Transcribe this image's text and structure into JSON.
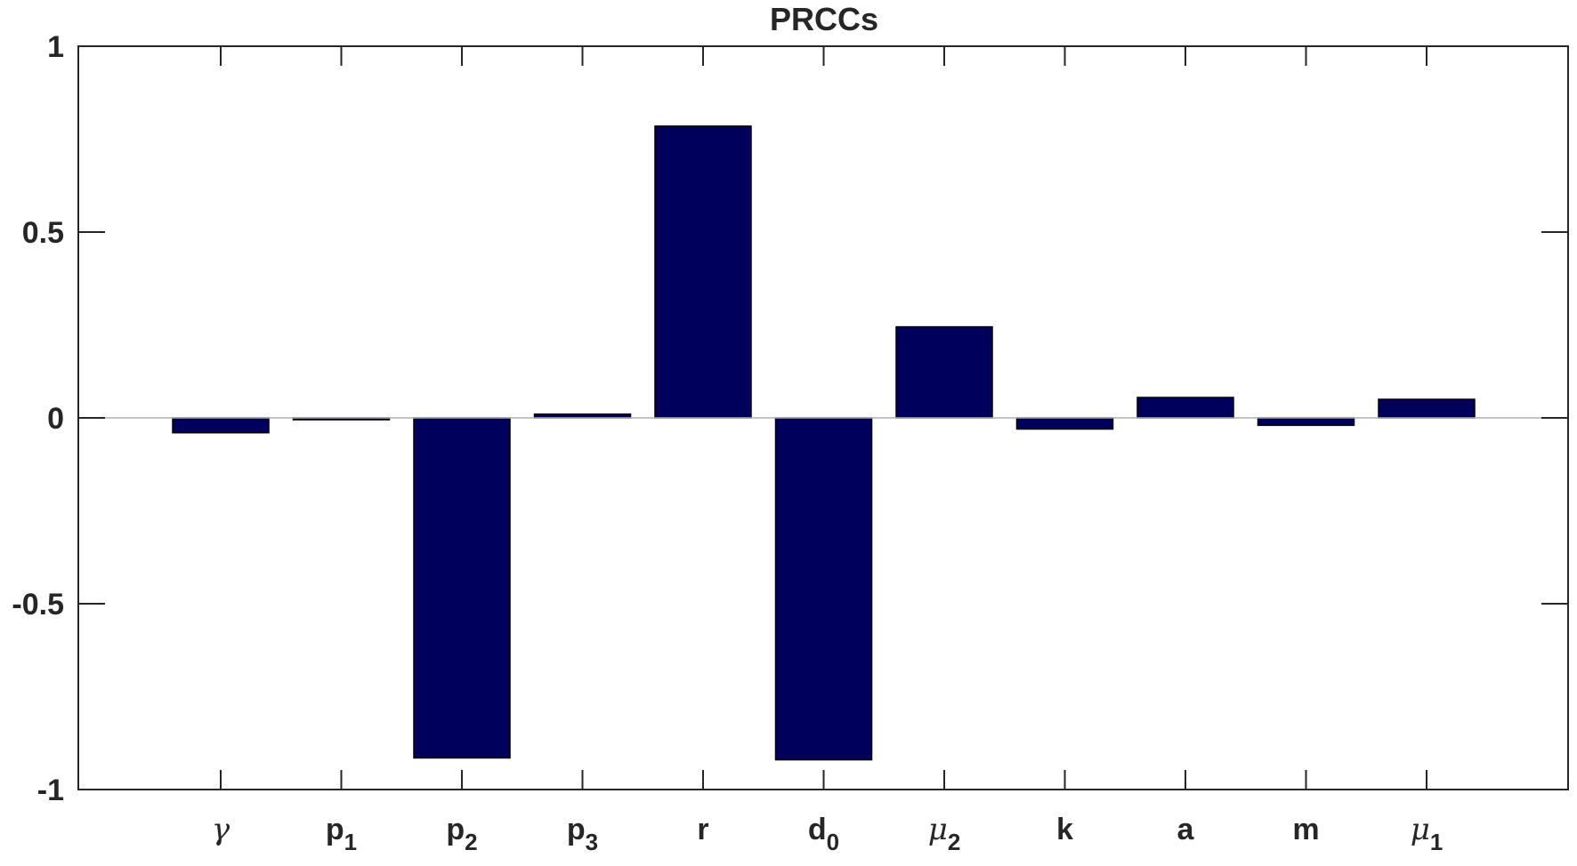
{
  "chart_data": {
    "type": "bar",
    "title": "PRCCs",
    "xlabel": "",
    "ylabel": "",
    "ylim": [
      -1,
      1
    ],
    "yticks": [
      1,
      0.5,
      0,
      -0.5,
      -1
    ],
    "ytick_labels": [
      "1",
      "0.5",
      "0",
      "-0.5",
      "-1"
    ],
    "categories": [
      {
        "base": "γ",
        "sub": "",
        "greek": true
      },
      {
        "base": "p",
        "sub": "1",
        "greek": false
      },
      {
        "base": "p",
        "sub": "2",
        "greek": false
      },
      {
        "base": "p",
        "sub": "3",
        "greek": false
      },
      {
        "base": "r",
        "sub": "",
        "greek": false
      },
      {
        "base": "d",
        "sub": "0",
        "greek": false
      },
      {
        "base": "μ",
        "sub": "2",
        "greek": true
      },
      {
        "base": "k",
        "sub": "",
        "greek": false
      },
      {
        "base": "a",
        "sub": "",
        "greek": false
      },
      {
        "base": "m",
        "sub": "",
        "greek": false
      },
      {
        "base": "μ",
        "sub": "1",
        "greek": true
      }
    ],
    "values": [
      -0.04,
      -0.005,
      -0.915,
      0.01,
      0.785,
      -0.92,
      0.245,
      -0.03,
      0.055,
      -0.02,
      0.05
    ],
    "bar_color": "#00005c",
    "zero_line_color": "#b0b0b0",
    "grid": false,
    "legend": "none"
  }
}
